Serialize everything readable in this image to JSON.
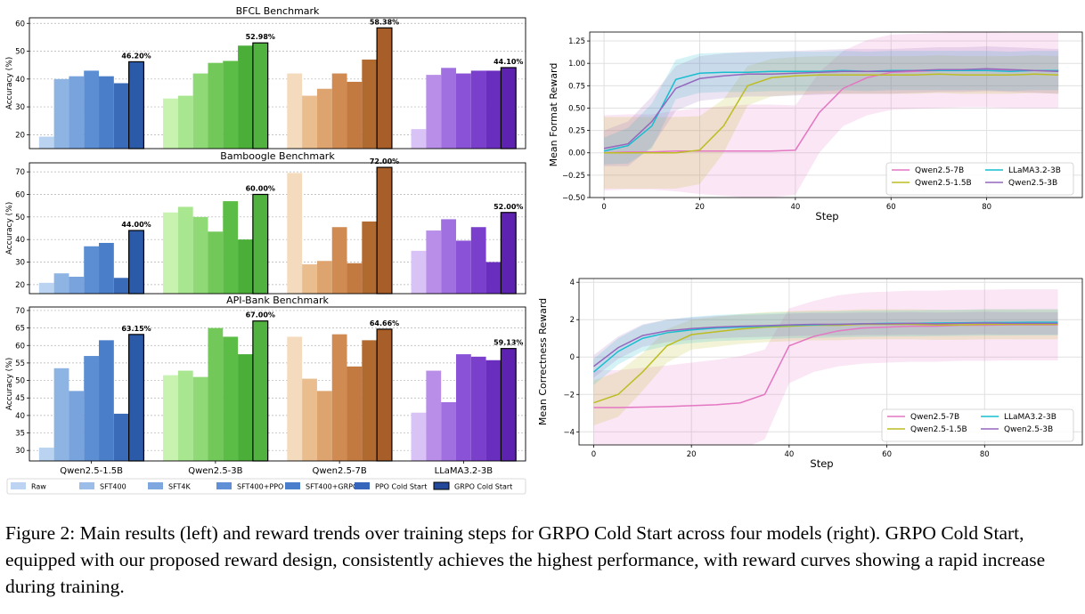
{
  "caption": "Figure 2: Main results (left) and reward trends over training steps for GRPO Cold Start across four models (right). GRPO Cold Start, equipped with our proposed reward design, consistently achieves the highest performance, with reward curves showing a rapid increase during training.",
  "colors": {
    "Qwen2.5-1.5B": [
      "#b9d3f0",
      "#8eb4e3",
      "#78a3dc",
      "#5b8ed3",
      "#4a7ec8",
      "#3a6bb8",
      "#2a5aa8"
    ],
    "Qwen2.5-3B": [
      "#c8f2b0",
      "#a9e690",
      "#8fd977",
      "#72c95a",
      "#5cbd46",
      "#4aae38",
      "#52b240"
    ],
    "Qwen2.5-7B": [
      "#f5dbbd",
      "#e9bd8e",
      "#dea470",
      "#cf8b52",
      "#c27a40",
      "#b06a30",
      "#a85e28"
    ],
    "LLaMA3.2-3B": [
      "#d9c2f5",
      "#b88ee8",
      "#a070e0",
      "#8a52d6",
      "#7a40cc",
      "#6a2ebf",
      "#5e22b0"
    ],
    "legend_colors": [
      "#bcd4f2",
      "#9dbde9",
      "#7ea6df",
      "#5f8fd5",
      "#4a7dcb",
      "#3566bc",
      "#23489a"
    ]
  },
  "chart_data": [
    {
      "type": "bar",
      "title": "BFCL Benchmark",
      "ylabel": "Accuracy (%)",
      "ylim": [
        15,
        62
      ],
      "yticks": [
        20,
        30,
        40,
        50,
        60
      ],
      "categories": [
        "Qwen2.5-1.5B",
        "Qwen2.5-3B",
        "Qwen2.5-7B",
        "LLaMA3.2-3B"
      ],
      "series": [
        {
          "name": "Raw",
          "values": [
            19.3,
            33.0,
            42.0,
            22.0
          ]
        },
        {
          "name": "SFT400",
          "values": [
            40.0,
            34.0,
            34.0,
            41.5
          ]
        },
        {
          "name": "SFT4K",
          "values": [
            41.0,
            42.0,
            36.5,
            44.0
          ]
        },
        {
          "name": "SFT400+PPO",
          "values": [
            43.0,
            45.8,
            42.0,
            42.0
          ]
        },
        {
          "name": "SFT400+GRPO",
          "values": [
            41.0,
            46.5,
            39.0,
            43.0
          ]
        },
        {
          "name": "PPO Cold Start",
          "values": [
            38.5,
            52.0,
            47.0,
            43.0
          ]
        },
        {
          "name": "GRPO Cold Start",
          "values": [
            46.2,
            52.98,
            58.38,
            44.1
          ]
        }
      ],
      "best_labels": [
        "46.20%",
        "52.98%",
        "58.38%",
        "44.10%"
      ]
    },
    {
      "type": "bar",
      "title": "Bamboogle Benchmark",
      "ylabel": "Accuracy (%)",
      "ylim": [
        16,
        74
      ],
      "yticks": [
        20,
        30,
        40,
        50,
        60,
        70
      ],
      "categories": [
        "Qwen2.5-1.5B",
        "Qwen2.5-3B",
        "Qwen2.5-7B",
        "LLaMA3.2-3B"
      ],
      "series": [
        {
          "name": "Raw",
          "values": [
            20.8,
            52.0,
            69.5,
            35.0
          ]
        },
        {
          "name": "SFT400",
          "values": [
            25.0,
            54.5,
            29.0,
            44.0
          ]
        },
        {
          "name": "SFT4K",
          "values": [
            23.5,
            50.0,
            30.5,
            49.0
          ]
        },
        {
          "name": "SFT400+PPO",
          "values": [
            37.0,
            43.5,
            45.5,
            39.5
          ]
        },
        {
          "name": "SFT400+GRPO",
          "values": [
            38.5,
            57.0,
            29.5,
            45.5
          ]
        },
        {
          "name": "PPO Cold Start",
          "values": [
            23.0,
            40.0,
            48.0,
            30.0
          ]
        },
        {
          "name": "GRPO Cold Start",
          "values": [
            44.0,
            60.0,
            72.0,
            52.0
          ]
        }
      ],
      "best_labels": [
        "44.00%",
        "60.00%",
        "72.00%",
        "52.00%"
      ]
    },
    {
      "type": "bar",
      "title": "API-Bank Benchmark",
      "ylabel": "Accuracy (%)",
      "ylim": [
        27,
        71
      ],
      "yticks": [
        30,
        35,
        40,
        45,
        50,
        55,
        60,
        65,
        70
      ],
      "categories": [
        "Qwen2.5-1.5B",
        "Qwen2.5-3B",
        "Qwen2.5-7B",
        "LLaMA3.2-3B"
      ],
      "series": [
        {
          "name": "Raw",
          "values": [
            30.8,
            51.5,
            62.5,
            40.8
          ]
        },
        {
          "name": "SFT400",
          "values": [
            53.5,
            52.8,
            50.5,
            52.8
          ]
        },
        {
          "name": "SFT4K",
          "values": [
            47.0,
            51.0,
            47.0,
            43.8
          ]
        },
        {
          "name": "SFT400+PPO",
          "values": [
            57.0,
            65.0,
            63.2,
            57.5
          ]
        },
        {
          "name": "SFT400+GRPO",
          "values": [
            61.5,
            62.5,
            54.0,
            56.8
          ]
        },
        {
          "name": "PPO Cold Start",
          "values": [
            40.5,
            57.5,
            61.5,
            55.8
          ]
        },
        {
          "name": "GRPO Cold Start",
          "values": [
            63.15,
            67.0,
            64.66,
            59.13
          ]
        }
      ],
      "best_labels": [
        "63.15%",
        "67.00%",
        "64.66%",
        "59.13%"
      ]
    },
    {
      "type": "line",
      "xlabel": "Step",
      "ylabel": "Mean Format Reward",
      "xlim": [
        -3,
        100
      ],
      "ylim": [
        -0.5,
        1.35
      ],
      "xticks": [
        0,
        20,
        40,
        60,
        80
      ],
      "yticks": [
        -0.5,
        -0.25,
        0.0,
        0.25,
        0.5,
        0.75,
        1.0,
        1.25
      ],
      "ytick_labels": [
        "−0.50",
        "−0.25",
        "0.00",
        "0.25",
        "0.50",
        "0.75",
        "1.00",
        "1.25"
      ],
      "x": [
        0,
        5,
        10,
        15,
        20,
        25,
        30,
        35,
        40,
        45,
        50,
        55,
        60,
        65,
        70,
        75,
        80,
        85,
        90,
        95
      ],
      "series": [
        {
          "name": "Qwen2.5-7B",
          "color": "#e377c2",
          "values": [
            0.0,
            0.01,
            0.01,
            0.02,
            0.02,
            0.02,
            0.02,
            0.02,
            0.03,
            0.45,
            0.72,
            0.84,
            0.9,
            0.91,
            0.92,
            0.93,
            0.93,
            0.92,
            0.92,
            0.92
          ],
          "band": [
            0.42,
            0.42,
            0.42,
            0.45,
            0.48,
            0.5,
            0.52,
            0.52,
            0.5,
            0.45,
            0.42,
            0.42,
            0.42,
            0.42,
            0.42,
            0.42,
            0.42,
            0.42,
            0.42,
            0.42
          ]
        },
        {
          "name": "Qwen2.5-1.5B",
          "color": "#bcbd22",
          "values": [
            0.0,
            0.0,
            0.0,
            0.0,
            0.03,
            0.3,
            0.75,
            0.84,
            0.86,
            0.87,
            0.87,
            0.87,
            0.87,
            0.87,
            0.88,
            0.87,
            0.87,
            0.87,
            0.88,
            0.87
          ],
          "band": [
            0.4,
            0.4,
            0.4,
            0.4,
            0.38,
            0.3,
            0.22,
            0.21,
            0.21,
            0.21,
            0.21,
            0.21,
            0.21,
            0.21,
            0.21,
            0.21,
            0.21,
            0.21,
            0.21,
            0.21
          ]
        },
        {
          "name": "LLaMA3.2-3B",
          "color": "#17becf",
          "values": [
            0.02,
            0.08,
            0.3,
            0.82,
            0.89,
            0.9,
            0.9,
            0.91,
            0.91,
            0.91,
            0.92,
            0.91,
            0.92,
            0.92,
            0.92,
            0.92,
            0.92,
            0.91,
            0.92,
            0.92
          ],
          "band": [
            0.15,
            0.2,
            0.25,
            0.22,
            0.22,
            0.22,
            0.22,
            0.22,
            0.22,
            0.22,
            0.22,
            0.22,
            0.22,
            0.22,
            0.22,
            0.22,
            0.22,
            0.22,
            0.22,
            0.22
          ]
        },
        {
          "name": "Qwen2.5-3B",
          "color": "#9467bd",
          "values": [
            0.05,
            0.1,
            0.35,
            0.72,
            0.83,
            0.86,
            0.88,
            0.88,
            0.89,
            0.9,
            0.91,
            0.91,
            0.91,
            0.92,
            0.93,
            0.93,
            0.94,
            0.93,
            0.92,
            0.91
          ],
          "band": [
            0.2,
            0.25,
            0.28,
            0.25,
            0.25,
            0.25,
            0.25,
            0.25,
            0.25,
            0.25,
            0.25,
            0.25,
            0.25,
            0.25,
            0.25,
            0.25,
            0.25,
            0.25,
            0.25,
            0.25
          ]
        }
      ]
    },
    {
      "type": "line",
      "xlabel": "Step",
      "ylabel": "Mean Correctness Reward",
      "xlim": [
        -3,
        100
      ],
      "ylim": [
        -4.7,
        4.2
      ],
      "xticks": [
        0,
        20,
        40,
        60,
        80
      ],
      "yticks": [
        -4,
        -2,
        0,
        2,
        4
      ],
      "ytick_labels": [
        "−4",
        "−2",
        "0",
        "2",
        "4"
      ],
      "x": [
        0,
        5,
        10,
        15,
        20,
        25,
        30,
        35,
        40,
        45,
        50,
        55,
        60,
        65,
        70,
        75,
        80,
        85,
        90,
        95
      ],
      "series": [
        {
          "name": "Qwen2.5-7B",
          "color": "#e377c2",
          "values": [
            -2.7,
            -2.7,
            -2.68,
            -2.65,
            -2.6,
            -2.55,
            -2.45,
            -2.0,
            0.6,
            1.1,
            1.4,
            1.55,
            1.6,
            1.65,
            1.65,
            1.7,
            1.7,
            1.72,
            1.72,
            1.72
          ],
          "band": [
            2.0,
            2.0,
            2.1,
            2.2,
            2.3,
            2.4,
            2.5,
            2.4,
            2.0,
            1.9,
            1.9,
            1.9,
            1.9,
            1.9,
            1.9,
            1.9,
            1.9,
            1.9,
            1.9,
            1.9
          ]
        },
        {
          "name": "Qwen2.5-1.5B",
          "color": "#bcbd22",
          "values": [
            -2.45,
            -2.0,
            -0.8,
            0.6,
            1.2,
            1.35,
            1.5,
            1.6,
            1.65,
            1.7,
            1.7,
            1.75,
            1.75,
            1.75,
            1.72,
            1.72,
            1.75,
            1.75,
            1.75,
            1.75
          ],
          "band": [
            1.2,
            1.2,
            1.0,
            0.9,
            0.8,
            0.8,
            0.8,
            0.8,
            0.8,
            0.8,
            0.8,
            0.8,
            0.8,
            0.8,
            0.8,
            0.8,
            0.8,
            0.8,
            0.8,
            0.8
          ]
        },
        {
          "name": "LLaMA3.2-3B",
          "color": "#17becf",
          "values": [
            -0.8,
            0.3,
            1.0,
            1.3,
            1.45,
            1.55,
            1.6,
            1.65,
            1.7,
            1.72,
            1.75,
            1.78,
            1.8,
            1.8,
            1.82,
            1.83,
            1.85,
            1.85,
            1.86,
            1.86
          ],
          "band": [
            0.7,
            0.7,
            0.7,
            0.7,
            0.7,
            0.7,
            0.7,
            0.7,
            0.7,
            0.7,
            0.7,
            0.7,
            0.7,
            0.7,
            0.7,
            0.7,
            0.7,
            0.7,
            0.7,
            0.7
          ]
        },
        {
          "name": "Qwen2.5-3B",
          "color": "#9467bd",
          "values": [
            -0.5,
            0.5,
            1.15,
            1.4,
            1.52,
            1.6,
            1.65,
            1.68,
            1.72,
            1.75,
            1.75,
            1.78,
            1.78,
            1.8,
            1.78,
            1.8,
            1.82,
            1.8,
            1.8,
            1.8
          ],
          "band": [
            0.6,
            0.6,
            0.6,
            0.6,
            0.6,
            0.6,
            0.6,
            0.6,
            0.6,
            0.6,
            0.6,
            0.6,
            0.6,
            0.6,
            0.6,
            0.6,
            0.6,
            0.6,
            0.6,
            0.6
          ]
        }
      ]
    }
  ]
}
